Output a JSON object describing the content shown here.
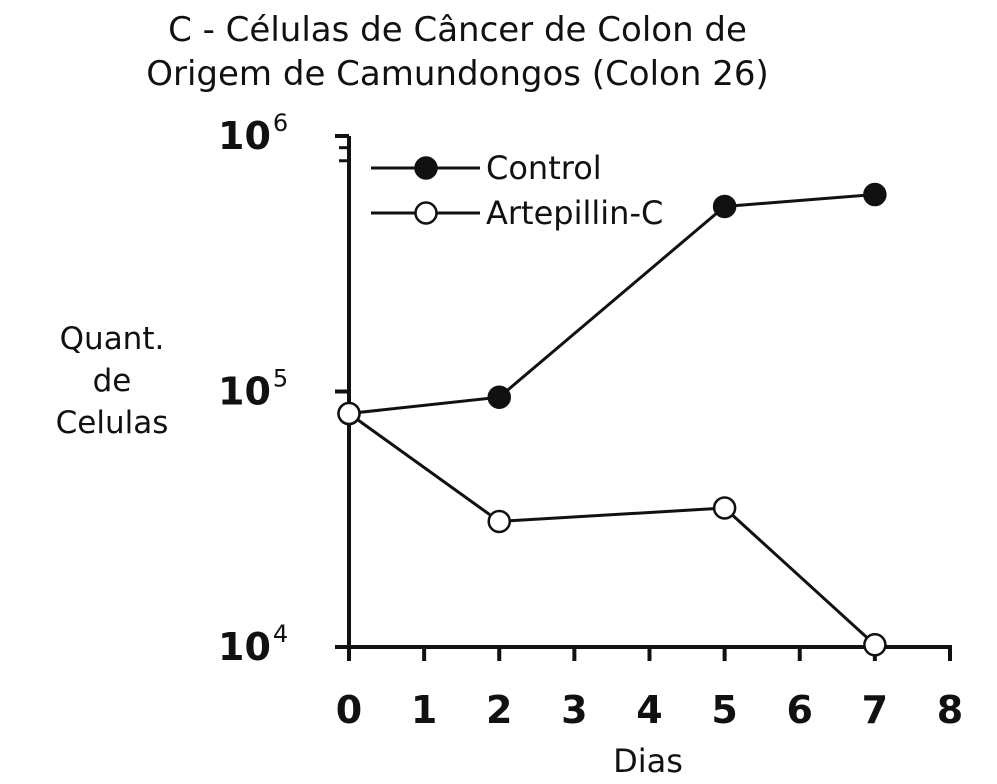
{
  "chart_data": {
    "type": "line",
    "title_line1": "C - Células de Câncer de Colon de",
    "title_line2": "Origem de Camundongos (Colon 26)",
    "ylabel_lines": [
      "Quant.",
      "de",
      "Celulas"
    ],
    "xlabel": "Dias",
    "x_ticks": [
      "0",
      "1",
      "2",
      "3",
      "4",
      "5",
      "6",
      "7",
      "8"
    ],
    "xlim": [
      0,
      8
    ],
    "y_scale": "log",
    "ylim": [
      10000,
      1000000
    ],
    "y_ticks": [
      {
        "value": 10000,
        "base": "10",
        "exp": "4"
      },
      {
        "value": 100000,
        "base": "10",
        "exp": "5"
      },
      {
        "value": 1000000,
        "base": "10",
        "exp": "6"
      }
    ],
    "legend_position": "top-left",
    "series": [
      {
        "name": "Control",
        "marker": "filled-circle",
        "x": [
          0,
          2,
          5,
          7
        ],
        "y": [
          82000,
          95000,
          530000,
          590000
        ]
      },
      {
        "name": "Artepillin-C",
        "marker": "open-circle",
        "x": [
          0,
          2,
          5,
          7
        ],
        "y": [
          82000,
          31000,
          35000,
          10200
        ]
      }
    ]
  }
}
